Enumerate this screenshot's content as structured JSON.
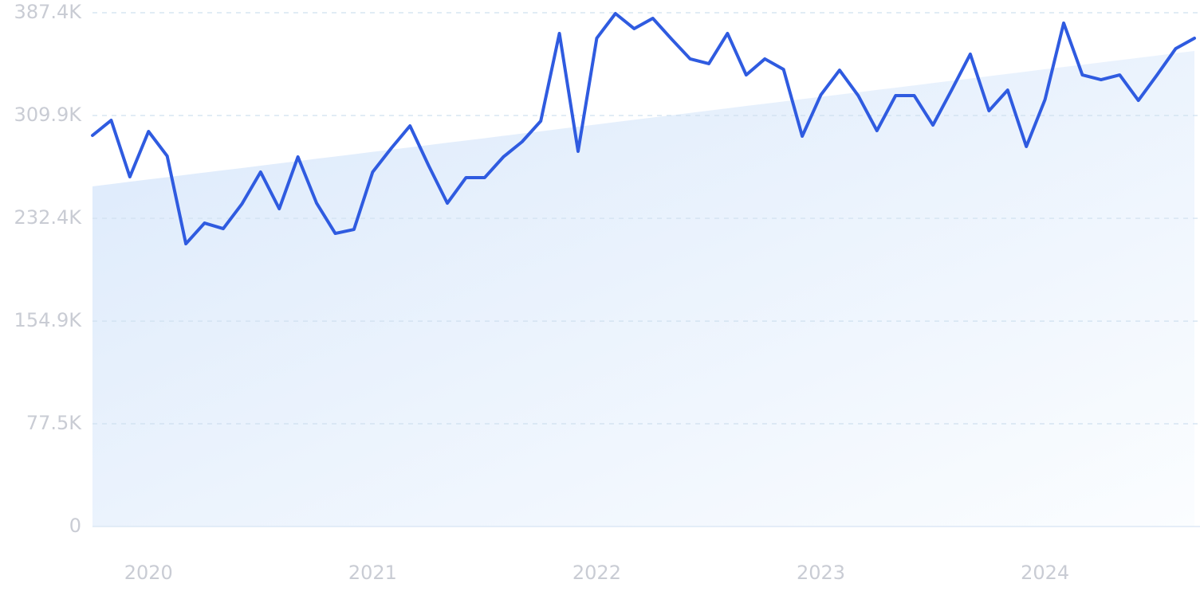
{
  "chart_data": {
    "type": "line",
    "categories": [
      null,
      null,
      null,
      "2020",
      null,
      null,
      null,
      null,
      null,
      null,
      null,
      null,
      null,
      null,
      null,
      "2021",
      null,
      null,
      null,
      null,
      null,
      null,
      null,
      null,
      null,
      null,
      null,
      "2022",
      null,
      null,
      null,
      null,
      null,
      null,
      null,
      null,
      null,
      null,
      null,
      "2023",
      null,
      null,
      null,
      null,
      null,
      null,
      null,
      null,
      null,
      null,
      null,
      "2024",
      null,
      null,
      null,
      null,
      null,
      null,
      null,
      null
    ],
    "series": [
      {
        "kind": "area",
        "color": "#dbe9fb",
        "values": [
          256.5,
          258.2,
          260.0,
          261.7,
          263.4,
          265.2,
          266.9,
          268.6,
          270.3,
          272.1,
          273.8,
          275.5,
          277.3,
          279.0,
          280.7,
          282.5,
          284.2,
          285.9,
          287.6,
          289.4,
          291.1,
          292.8,
          294.6,
          296.3,
          298.0,
          299.8,
          301.5,
          303.2,
          305.0,
          306.7,
          308.4,
          310.1,
          311.9,
          313.6,
          315.3,
          317.1,
          318.8,
          320.5,
          322.3,
          324.0,
          325.7,
          327.4,
          329.2,
          330.9,
          332.6,
          334.4,
          336.1,
          337.8,
          339.6,
          341.3,
          343.0,
          344.8,
          346.5,
          348.2,
          349.9,
          351.7,
          353.4,
          355.1,
          356.9,
          358.6
        ]
      },
      {
        "kind": "line",
        "color": "#2f5be0",
        "values": [
          294.9,
          306.3,
          263.7,
          297.9,
          279.3,
          213.2,
          228.8,
          224.6,
          243.2,
          267.3,
          239.6,
          278.7,
          243.8,
          221.0,
          224.0,
          267.3,
          285.3,
          302.1,
          272.1,
          243.8,
          263.1,
          263.1,
          278.7,
          290.1,
          305.7,
          371.8,
          282.9,
          368.2,
          386.8,
          375.4,
          383.2,
          367.6,
          352.6,
          349.0,
          371.8,
          340.5,
          352.6,
          344.7,
          294.3,
          325.5,
          344.1,
          324.9,
          298.5,
          324.9,
          324.9,
          302.7,
          329.1,
          356.2,
          313.5,
          329.1,
          286.5,
          321.9,
          379.6,
          340.5,
          336.9,
          340.5,
          321.3,
          340.5,
          360.4,
          368.2
        ]
      }
    ],
    "ylim": [
      0,
      387.4
    ],
    "yticks": [
      0,
      {
        "value": 77.5,
        "label": "77.5K"
      },
      {
        "value": 154.9,
        "label": "154.9K"
      },
      {
        "value": 232.4,
        "label": "232.4K"
      },
      {
        "value": 309.9,
        "label": "309.9K"
      },
      {
        "value": 387.4,
        "label": "387.4K"
      }
    ],
    "grid": true
  }
}
